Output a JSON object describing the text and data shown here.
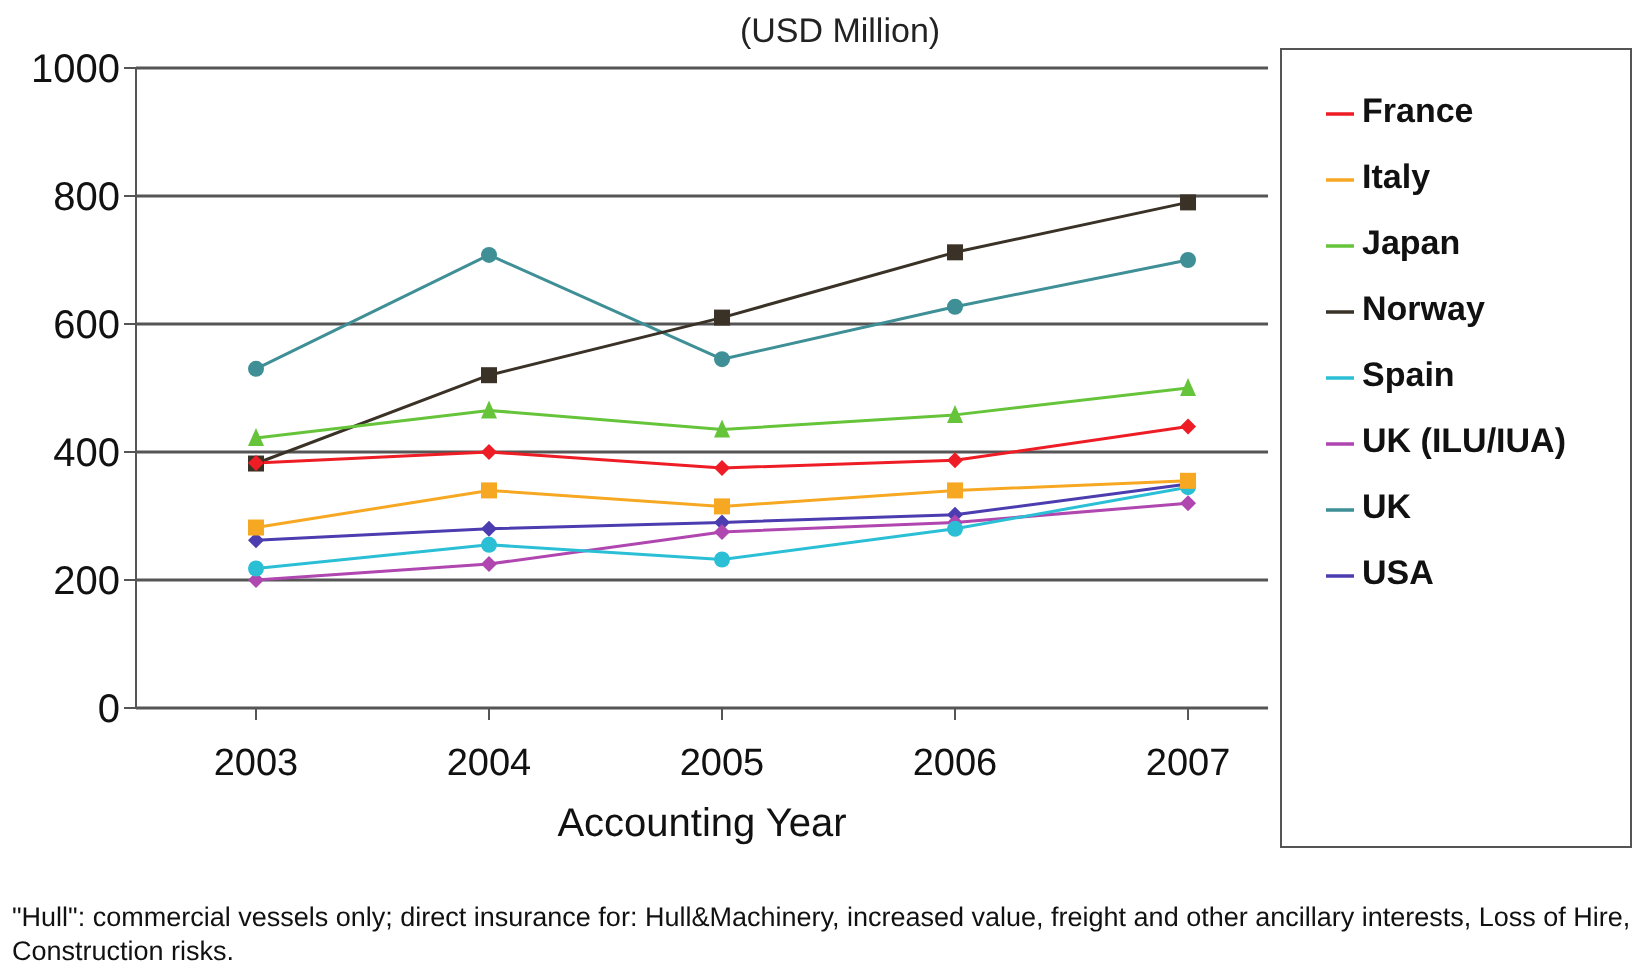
{
  "chart_data": {
    "type": "line",
    "title": "(USD Million)",
    "xlabel": "Accounting Year",
    "categories": [
      "2003",
      "2004",
      "2005",
      "2006",
      "2007"
    ],
    "series": [
      {
        "name": "France",
        "color": "#ee1c25",
        "marker": "diamond",
        "values": [
          383,
          400,
          375,
          387,
          440
        ]
      },
      {
        "name": "Italy",
        "color": "#f7a823",
        "marker": "square",
        "values": [
          282,
          340,
          315,
          340,
          355
        ]
      },
      {
        "name": "Japan",
        "color": "#66c43a",
        "marker": "triangle",
        "values": [
          422,
          465,
          435,
          458,
          500
        ]
      },
      {
        "name": "Norway",
        "color": "#3a3226",
        "marker": "square",
        "values": [
          382,
          520,
          610,
          712,
          790
        ]
      },
      {
        "name": "Spain",
        "color": "#2bbfd6",
        "marker": "circle",
        "values": [
          218,
          255,
          232,
          280,
          345
        ]
      },
      {
        "name": "UK (ILU/IUA)",
        "color": "#b046b0",
        "marker": "diamond",
        "values": [
          200,
          225,
          275,
          290,
          320
        ]
      },
      {
        "name": "UK",
        "color": "#3e8f96",
        "marker": "circle",
        "values": [
          530,
          708,
          545,
          627,
          700
        ]
      },
      {
        "name": "USA",
        "color": "#4b3cb0",
        "marker": "diamond",
        "values": [
          262,
          280,
          290,
          302,
          350
        ]
      }
    ],
    "ylim": [
      0,
      1000
    ],
    "yticks": [
      0,
      200,
      400,
      600,
      800,
      1000
    ],
    "grid": "y",
    "legend": "right",
    "annotations": [
      "\"Hull\": commercial vessels only; direct insurance for: Hull&Machinery, increased value, freight and other ancillary interests, Loss of Hire, Construction risks."
    ]
  }
}
